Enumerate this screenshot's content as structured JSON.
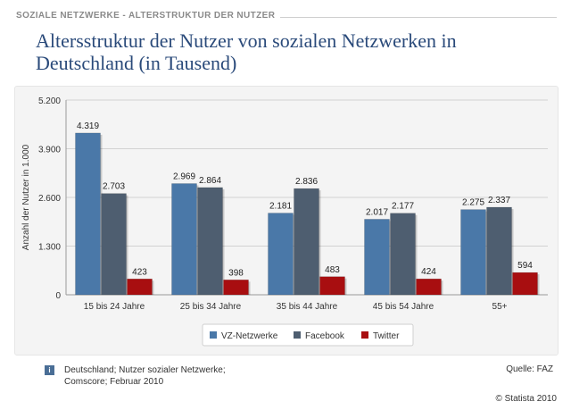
{
  "header": {
    "section_label": "SOZIALE NETZWERKE - ALTERSTRUKTUR DER NUTZER",
    "title": "Altersstruktur der Nutzer von sozialen Netzwerken in Deutschland (in Tausend)"
  },
  "chart_data": {
    "type": "bar",
    "title": "Altersstruktur der Nutzer von sozialen Netzwerken in Deutschland (in Tausend)",
    "xlabel": "",
    "ylabel": "Anzahl der Nutzer in 1.000",
    "ylim": [
      0,
      5200
    ],
    "yticks": [
      0,
      1300,
      2600,
      3900,
      5200
    ],
    "ytick_labels": [
      "0",
      "1.300",
      "2.600",
      "3.900",
      "5.200"
    ],
    "categories": [
      "15 bis 24 Jahre",
      "25 bis 34 Jahre",
      "35 bis 44 Jahre",
      "45 bis 54 Jahre",
      "55+"
    ],
    "series": [
      {
        "name": "VZ-Netzwerke",
        "color": "#4a78a8",
        "values": [
          4319,
          2969,
          2181,
          2017,
          2275
        ],
        "labels": [
          "4.319",
          "2.969",
          "2.181",
          "2.017",
          "2.275"
        ]
      },
      {
        "name": "Facebook",
        "color": "#4e5e70",
        "values": [
          2703,
          2864,
          2836,
          2177,
          2337
        ],
        "labels": [
          "2.703",
          "2.864",
          "2.836",
          "2.177",
          "2.337"
        ]
      },
      {
        "name": "Twitter",
        "color": "#a80e10",
        "values": [
          423,
          398,
          483,
          424,
          594
        ],
        "labels": [
          "423",
          "398",
          "483",
          "424",
          "594"
        ]
      }
    ],
    "grid": true,
    "legend_position": "bottom"
  },
  "footer": {
    "info_icon": "i",
    "info_line1": "Deutschland; Nutzer sozialer Netzwerke;",
    "info_line2": "Comscore; Februar 2010",
    "source": "Quelle: FAZ",
    "copyright": "© Statista 2010"
  }
}
